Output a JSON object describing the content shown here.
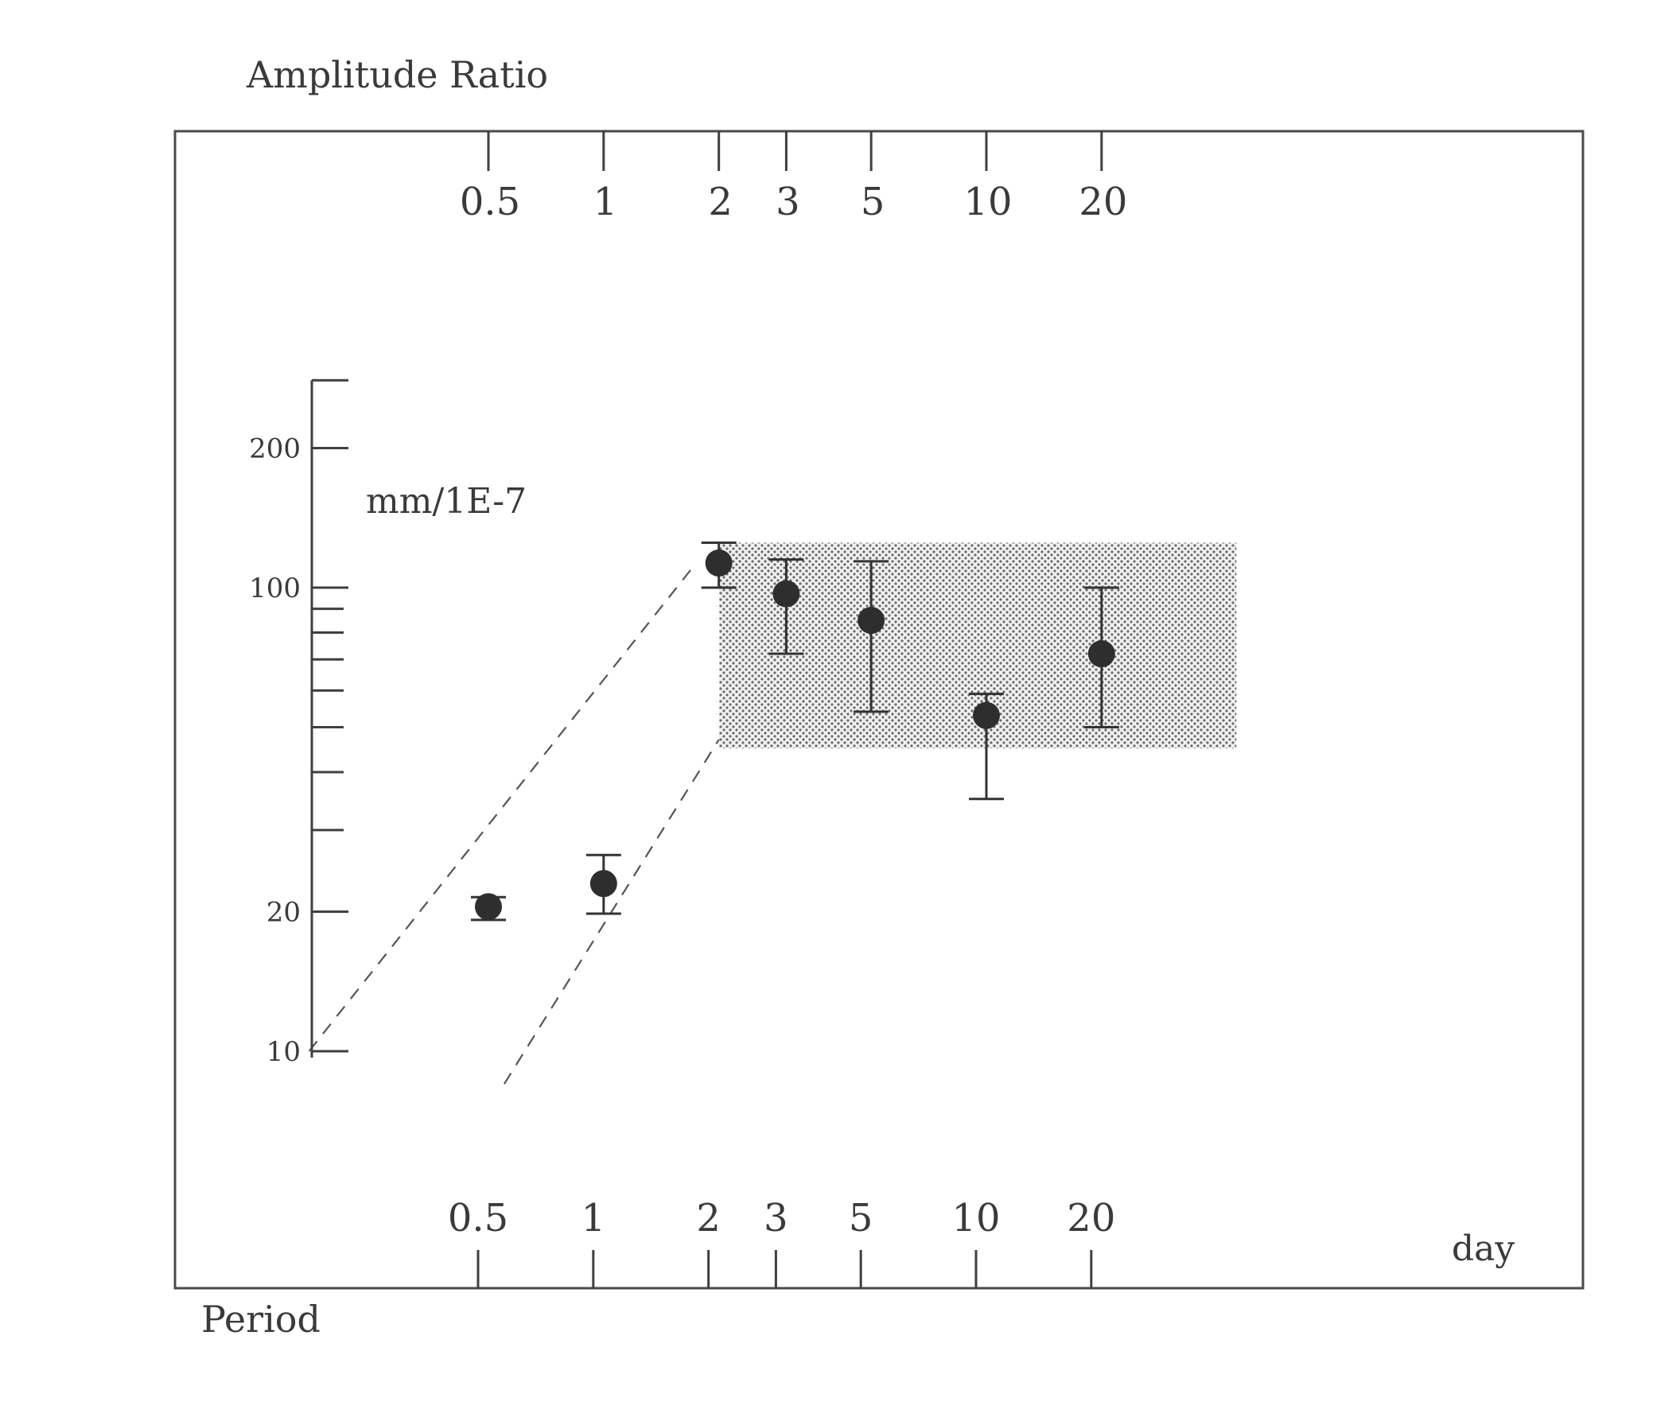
{
  "chart_data": {
    "type": "scatter",
    "title": "Amplitude Ratio",
    "ylabel": "mm/1E-7",
    "xlabel": "Period",
    "x_unit": "day",
    "x_scale": "log",
    "y_scale": "log",
    "xlim": [
      0.14,
      150
    ],
    "ylim": [
      10,
      280
    ],
    "x_ticks": [
      "0.5",
      "1",
      "2",
      "3",
      "5",
      "10",
      "20"
    ],
    "x_tick_values": [
      0.5,
      1,
      2,
      3,
      5,
      10,
      20
    ],
    "y_ticks": [
      "200",
      "100",
      "20",
      "10"
    ],
    "y_tick_values": [
      200,
      100,
      20,
      10
    ],
    "y_minor_ticks": [
      30,
      40,
      50,
      60,
      70,
      80,
      90
    ],
    "shaded_band": {
      "x": [
        2.0,
        45
      ],
      "y": [
        45,
        125
      ]
    },
    "guide_lines": [
      {
        "x": [
          0.17,
          1.7
        ],
        "y": [
          10,
          110
        ]
      },
      {
        "x": [
          0.55,
          2.0
        ],
        "y": [
          8.5,
          47
        ]
      }
    ],
    "series": [
      {
        "points": [
          {
            "x": 0.5,
            "y": 20.5,
            "low": 19.2,
            "high": 21.5
          },
          {
            "x": 1,
            "y": 23,
            "low": 19.8,
            "high": 26.5
          },
          {
            "x": 2,
            "y": 113,
            "low": 100,
            "high": 125
          },
          {
            "x": 3,
            "y": 97,
            "low": 72,
            "high": 115
          },
          {
            "x": 5,
            "y": 85,
            "low": 54,
            "high": 114
          },
          {
            "x": 10,
            "y": 53,
            "low": 35,
            "high": 59
          },
          {
            "x": 20,
            "y": 72,
            "low": 50,
            "high": 100
          }
        ]
      }
    ],
    "grid": false
  }
}
